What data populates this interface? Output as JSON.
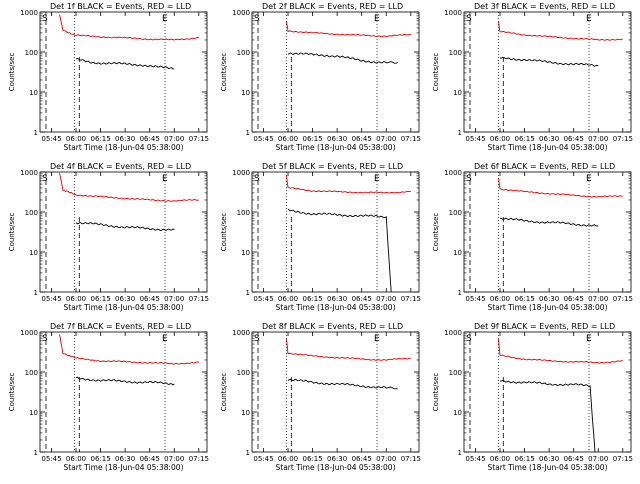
{
  "colors": {
    "events": "#000000",
    "lld": "#e00000",
    "axes": "#000000",
    "background": "#ffffff"
  },
  "chart_data": [
    {
      "type": "line",
      "title": "Det 1f BLACK = Events, RED = LLD",
      "xlabel": "Start Time (18-Jun-04 05:38:00)",
      "ylabel": "Counts/sec",
      "yscale": "log",
      "ylim": [
        1,
        1000
      ],
      "x_ticks": [
        "05:45",
        "06:00",
        "06:15",
        "06:30",
        "06:45",
        "07:00",
        "07:15"
      ],
      "y_ticks": [
        "1",
        "10",
        "100",
        "1000"
      ],
      "marker_labels": [
        "S",
        "E"
      ],
      "series": [
        {
          "name": "Events",
          "color": "#000000",
          "x": [
            "06:00",
            "06:10",
            "06:20",
            "06:30",
            "06:40",
            "06:50",
            "07:00"
          ],
          "y": [
            65,
            55,
            52,
            50,
            48,
            42,
            38
          ]
        },
        {
          "name": "LLD",
          "color": "#e00000",
          "x": [
            "05:50",
            "05:52",
            "06:00",
            "06:15",
            "06:30",
            "06:45",
            "07:00",
            "07:15"
          ],
          "y": [
            900,
            350,
            260,
            240,
            225,
            210,
            200,
            230
          ]
        }
      ]
    },
    {
      "type": "line",
      "title": "Det 2f BLACK = Events, RED = LLD",
      "xlabel": "Start Time (18-Jun-04 05:38:00)",
      "ylabel": "Counts/sec",
      "yscale": "log",
      "ylim": [
        1,
        1000
      ],
      "x_ticks": [
        "05:45",
        "06:00",
        "06:15",
        "06:30",
        "06:45",
        "07:00",
        "07:15"
      ],
      "y_ticks": [
        "1",
        "10",
        "100",
        "1000"
      ],
      "marker_labels": [
        "S",
        "E"
      ],
      "series": [
        {
          "name": "Events",
          "color": "#000000",
          "x": [
            "06:00",
            "06:15",
            "06:30",
            "06:45",
            "07:00",
            "07:07"
          ],
          "y": [
            95,
            85,
            80,
            60,
            55,
            55
          ]
        },
        {
          "name": "LLD",
          "color": "#e00000",
          "x": [
            "05:59",
            "06:00",
            "06:15",
            "06:30",
            "06:45",
            "07:00",
            "07:15"
          ],
          "y": [
            600,
            340,
            300,
            280,
            260,
            250,
            270
          ]
        }
      ]
    },
    {
      "type": "line",
      "title": "Det 3f BLACK = Events, RED = LLD",
      "xlabel": "Start Time (18-Jun-04 05:38:00)",
      "ylabel": "Counts/sec",
      "yscale": "log",
      "ylim": [
        1,
        1000
      ],
      "x_ticks": [
        "05:45",
        "06:00",
        "06:15",
        "06:30",
        "06:45",
        "07:00",
        "07:15"
      ],
      "y_ticks": [
        "1",
        "10",
        "100",
        "1000"
      ],
      "marker_labels": [
        "S",
        "E"
      ],
      "series": [
        {
          "name": "Events",
          "color": "#000000",
          "x": [
            "06:00",
            "06:15",
            "06:30",
            "06:45",
            "07:00"
          ],
          "y": [
            70,
            65,
            55,
            50,
            45
          ]
        },
        {
          "name": "LLD",
          "color": "#e00000",
          "x": [
            "05:59",
            "06:00",
            "06:15",
            "06:30",
            "06:45",
            "07:00",
            "07:15"
          ],
          "y": [
            600,
            320,
            270,
            240,
            220,
            200,
            210
          ]
        }
      ]
    },
    {
      "type": "line",
      "title": "Det 4f BLACK = Events, RED = LLD",
      "xlabel": "Start Time (18-Jun-04 05:38:00)",
      "ylabel": "Counts/sec",
      "yscale": "log",
      "ylim": [
        1,
        1000
      ],
      "x_ticks": [
        "05:45",
        "06:00",
        "06:15",
        "06:30",
        "06:45",
        "07:00",
        "07:15"
      ],
      "y_ticks": [
        "1",
        "10",
        "100",
        "1000"
      ],
      "marker_labels": [
        "S",
        "E"
      ],
      "series": [
        {
          "name": "Events",
          "color": "#000000",
          "x": [
            "06:00",
            "06:15",
            "06:30",
            "06:45",
            "07:00"
          ],
          "y": [
            55,
            48,
            42,
            38,
            36
          ]
        },
        {
          "name": "LLD",
          "color": "#e00000",
          "x": [
            "05:50",
            "05:52",
            "06:00",
            "06:15",
            "06:30",
            "06:45",
            "07:00",
            "07:15"
          ],
          "y": [
            900,
            350,
            270,
            240,
            220,
            200,
            190,
            200
          ]
        }
      ]
    },
    {
      "type": "line",
      "title": "Det 5f BLACK = Events, RED = LLD",
      "xlabel": "Start Time (18-Jun-04 05:38:00)",
      "ylabel": "Counts/sec",
      "yscale": "log",
      "ylim": [
        1,
        1000
      ],
      "x_ticks": [
        "05:45",
        "06:00",
        "06:15",
        "06:30",
        "06:45",
        "07:00",
        "07:15"
      ],
      "y_ticks": [
        "1",
        "10",
        "100",
        "1000"
      ],
      "marker_labels": [
        "S",
        "E"
      ],
      "series": [
        {
          "name": "Events",
          "color": "#000000",
          "x": [
            "06:00",
            "06:15",
            "06:30",
            "06:45",
            "07:00",
            "07:03"
          ],
          "y": [
            110,
            90,
            85,
            80,
            75,
            1
          ]
        },
        {
          "name": "LLD",
          "color": "#e00000",
          "x": [
            "05:59",
            "06:00",
            "06:15",
            "06:30",
            "06:45",
            "07:00",
            "07:15"
          ],
          "y": [
            800,
            400,
            340,
            320,
            310,
            300,
            330
          ]
        }
      ]
    },
    {
      "type": "line",
      "title": "Det 6f BLACK = Events, RED = LLD",
      "xlabel": "Start Time (18-Jun-04 05:38:00)",
      "ylabel": "Counts/sec",
      "yscale": "log",
      "ylim": [
        1,
        1000
      ],
      "x_ticks": [
        "05:45",
        "06:00",
        "06:15",
        "06:30",
        "06:45",
        "07:00",
        "07:15"
      ],
      "y_ticks": [
        "1",
        "10",
        "100",
        "1000"
      ],
      "marker_labels": [
        "S",
        "E"
      ],
      "series": [
        {
          "name": "Events",
          "color": "#000000",
          "x": [
            "06:00",
            "06:15",
            "06:30",
            "06:45",
            "07:00"
          ],
          "y": [
            70,
            60,
            55,
            50,
            45
          ]
        },
        {
          "name": "LLD",
          "color": "#e00000",
          "x": [
            "05:59",
            "06:00",
            "06:15",
            "06:30",
            "06:45",
            "07:00",
            "07:15"
          ],
          "y": [
            700,
            380,
            320,
            290,
            260,
            240,
            250
          ]
        }
      ]
    },
    {
      "type": "line",
      "title": "Det 7f BLACK = Events, RED = LLD",
      "xlabel": "Start Time (18-Jun-04 05:38:00)",
      "ylabel": "Counts/sec",
      "yscale": "log",
      "ylim": [
        1,
        1000
      ],
      "x_ticks": [
        "05:45",
        "06:00",
        "06:15",
        "06:30",
        "06:45",
        "07:00",
        "07:15"
      ],
      "y_ticks": [
        "1",
        "10",
        "100",
        "1000"
      ],
      "marker_labels": [
        "S",
        "E"
      ],
      "series": [
        {
          "name": "Events",
          "color": "#000000",
          "x": [
            "06:00",
            "06:15",
            "06:30",
            "06:45",
            "07:00"
          ],
          "y": [
            70,
            62,
            58,
            55,
            50
          ]
        },
        {
          "name": "LLD",
          "color": "#e00000",
          "x": [
            "05:50",
            "05:52",
            "06:00",
            "06:15",
            "06:30",
            "06:45",
            "07:00",
            "07:15"
          ],
          "y": [
            900,
            300,
            220,
            190,
            180,
            170,
            160,
            175
          ]
        }
      ]
    },
    {
      "type": "line",
      "title": "Det 8f BLACK = Events, RED = LLD",
      "xlabel": "Start Time (18-Jun-04 05:38:00)",
      "ylabel": "Counts/sec",
      "yscale": "log",
      "ylim": [
        1,
        1000
      ],
      "x_ticks": [
        "05:45",
        "06:00",
        "06:15",
        "06:30",
        "06:45",
        "07:00",
        "07:15"
      ],
      "y_ticks": [
        "1",
        "10",
        "100",
        "1000"
      ],
      "marker_labels": [
        "S",
        "E"
      ],
      "series": [
        {
          "name": "Events",
          "color": "#000000",
          "x": [
            "06:00",
            "06:15",
            "06:30",
            "06:45",
            "07:00",
            "07:07"
          ],
          "y": [
            65,
            55,
            50,
            45,
            40,
            38
          ]
        },
        {
          "name": "LLD",
          "color": "#e00000",
          "x": [
            "05:59",
            "06:00",
            "06:15",
            "06:30",
            "06:45",
            "07:00",
            "07:15"
          ],
          "y": [
            700,
            300,
            250,
            230,
            210,
            200,
            220
          ]
        }
      ]
    },
    {
      "type": "line",
      "title": "Det 9f BLACK = Events, RED = LLD",
      "xlabel": "Start Time (18-Jun-04 05:38:00)",
      "ylabel": "Counts/sec",
      "yscale": "log",
      "ylim": [
        1,
        1000
      ],
      "x_ticks": [
        "05:45",
        "06:00",
        "06:15",
        "06:30",
        "06:45",
        "07:00",
        "07:15"
      ],
      "y_ticks": [
        "1",
        "10",
        "100",
        "1000"
      ],
      "marker_labels": [
        "S",
        "E"
      ],
      "series": [
        {
          "name": "Events",
          "color": "#000000",
          "x": [
            "06:00",
            "06:15",
            "06:30",
            "06:45",
            "06:55",
            "06:58"
          ],
          "y": [
            60,
            55,
            50,
            48,
            45,
            1
          ]
        },
        {
          "name": "LLD",
          "color": "#e00000",
          "x": [
            "05:59",
            "06:00",
            "06:15",
            "06:30",
            "06:45",
            "07:00",
            "07:15"
          ],
          "y": [
            700,
            260,
            210,
            190,
            180,
            170,
            190
          ]
        }
      ]
    }
  ]
}
